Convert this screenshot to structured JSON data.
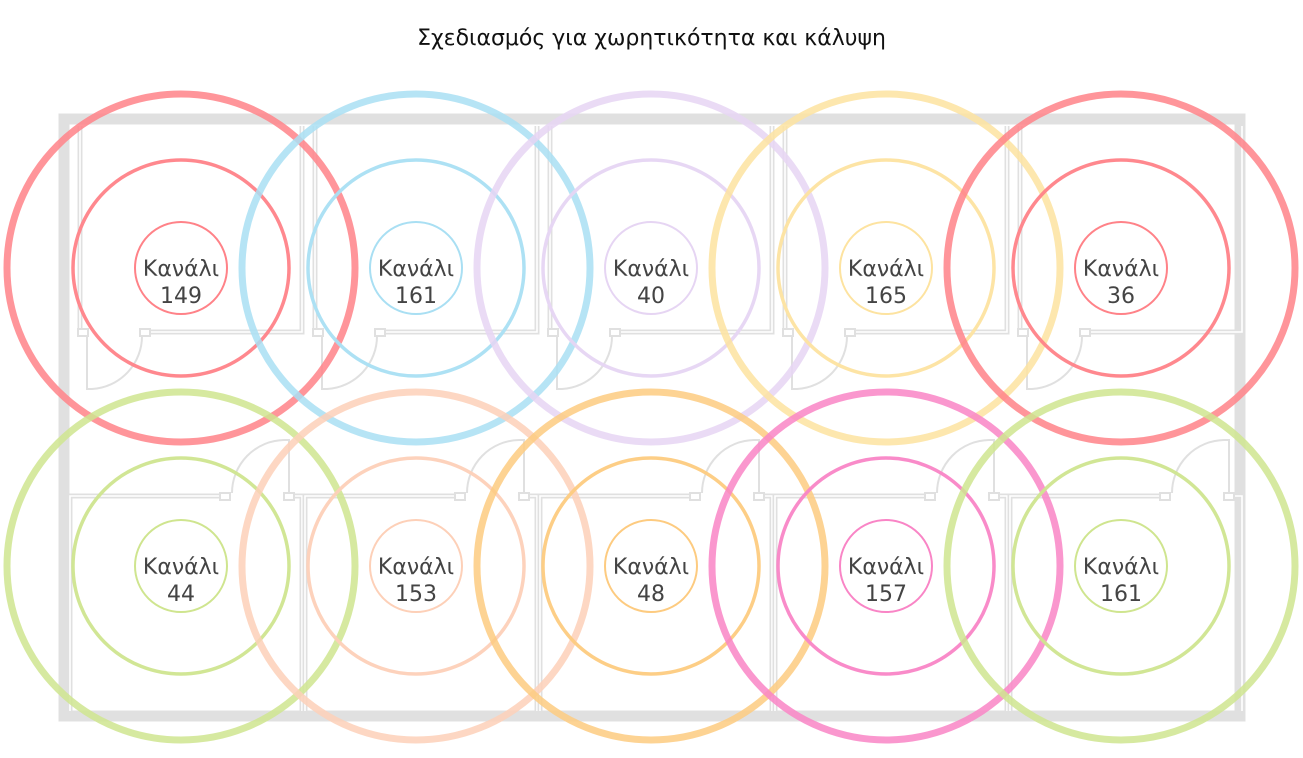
{
  "title": "Σχεδιασμός για χωρητικότητα και κάλυψη",
  "channel_label": "Κανάλι",
  "wall_color": "#e0e0e0",
  "rooms": [
    {
      "row": "top",
      "channel": "149",
      "color": "#ff8288"
    },
    {
      "row": "top",
      "channel": "161",
      "color": "#a9dff3"
    },
    {
      "row": "top",
      "channel": "40",
      "color": "#e6d5f3"
    },
    {
      "row": "top",
      "channel": "165",
      "color": "#fde3a0"
    },
    {
      "row": "top",
      "channel": "36",
      "color": "#ff8288"
    },
    {
      "row": "bottom",
      "channel": "44",
      "color": "#cfe58f"
    },
    {
      "row": "bottom",
      "channel": "153",
      "color": "#fdd0b8"
    },
    {
      "row": "bottom",
      "channel": "48",
      "color": "#fdcb80"
    },
    {
      "row": "bottom",
      "channel": "157",
      "color": "#f985c6"
    },
    {
      "row": "bottom",
      "channel": "161",
      "color": "#cfe58f"
    }
  ]
}
